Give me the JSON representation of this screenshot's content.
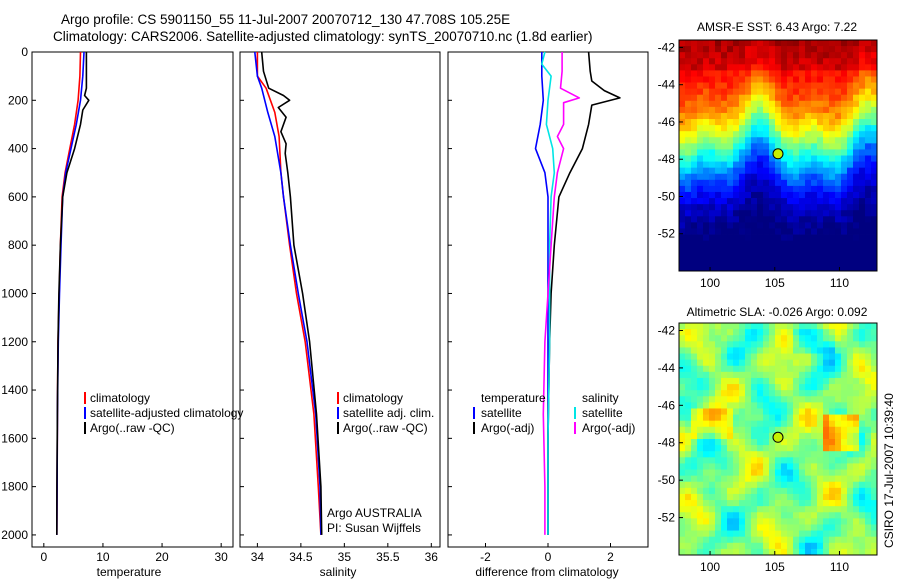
{
  "figure": {
    "title_line1": "Argo profile: CS 5901150_55 11-Jul-2007 20070712_130 47.708S 105.25E",
    "title_line2": "Climatology: CARS2006. Satellite-adjusted climatology: synTS_20070710.nc (1.8d earlier)",
    "credit": "CSIRO 17-Jul-2007 10:39:40",
    "argo_label": "Argo AUSTRALIA",
    "pi_label": "PI: Susan Wijffels"
  },
  "colors": {
    "climatology": "#ff0000",
    "satellite": "#0000ff",
    "argo": "#000000",
    "salinity_satellite": "#00e5e5",
    "salinity_argo": "#ff00ff",
    "marker": "#c8f000"
  },
  "chart_data": [
    {
      "type": "line",
      "xlabel": "temperature",
      "xticks": [
        "0",
        "10",
        "20",
        "30"
      ],
      "yticks": [
        "0",
        "200",
        "400",
        "600",
        "800",
        "1000",
        "1200",
        "1400",
        "1600",
        "1800",
        "2000"
      ],
      "xlim": [
        -2,
        32
      ],
      "ylim": [
        2050,
        0
      ],
      "legend": [
        "climatology",
        "satellite-adjusted climatology",
        "Argo(..raw -QC)"
      ],
      "series": [
        {
          "name": "climatology",
          "x": [
            6.2,
            6.1,
            5.8,
            5.2,
            4.4,
            3.6,
            3.1,
            2.8,
            2.6,
            2.4,
            2.3,
            2.25,
            2.2
          ],
          "y": [
            0,
            100,
            200,
            300,
            400,
            500,
            600,
            800,
            1000,
            1200,
            1500,
            1800,
            2000
          ]
        },
        {
          "name": "satellite-adjusted climatology",
          "x": [
            6.8,
            6.6,
            6.2,
            5.5,
            4.6,
            3.7,
            3.2,
            2.9,
            2.65,
            2.45,
            2.3,
            2.25,
            2.2
          ],
          "y": [
            0,
            100,
            200,
            300,
            400,
            500,
            600,
            800,
            1000,
            1200,
            1500,
            1800,
            2000
          ]
        },
        {
          "name": "Argo(..raw -QC)",
          "x": [
            7.2,
            7.2,
            7.2,
            6.9,
            7.6,
            6.6,
            6.2,
            5.2,
            3.9,
            3.2,
            2.8,
            2.55,
            2.4,
            2.3,
            2.22,
            2.2
          ],
          "y": [
            0,
            80,
            150,
            180,
            200,
            240,
            300,
            400,
            500,
            600,
            800,
            1000,
            1200,
            1500,
            1800,
            2000
          ]
        }
      ]
    },
    {
      "type": "line",
      "xlabel": "salinity",
      "xticks": [
        "34",
        "34.5",
        "35",
        "35.5",
        "36"
      ],
      "xlim": [
        33.8,
        36.1
      ],
      "ylim": [
        2050,
        0
      ],
      "legend": [
        "climatology",
        "satellite adj. clim.",
        "Argo(..raw -QC)"
      ],
      "series": [
        {
          "name": "climatology",
          "x": [
            34.0,
            34.0,
            34.1,
            34.2,
            34.25,
            34.27,
            34.3,
            34.37,
            34.45,
            34.55,
            34.65,
            34.7,
            34.73
          ],
          "y": [
            0,
            100,
            150,
            250,
            350,
            500,
            600,
            800,
            1000,
            1200,
            1500,
            1800,
            2000
          ]
        },
        {
          "name": "satellite adj. clim.",
          "x": [
            33.97,
            34.0,
            34.05,
            34.12,
            34.2,
            34.27,
            34.3,
            34.38,
            34.47,
            34.57,
            34.67,
            34.72,
            34.73
          ],
          "y": [
            0,
            100,
            150,
            250,
            350,
            500,
            600,
            800,
            1000,
            1200,
            1500,
            1800,
            2000
          ]
        },
        {
          "name": "Argo(..raw -QC)",
          "x": [
            34.05,
            34.07,
            34.13,
            34.3,
            34.37,
            34.24,
            34.33,
            34.27,
            34.33,
            34.32,
            34.35,
            34.38,
            34.42,
            34.52,
            34.6,
            34.68,
            34.73,
            34.74
          ],
          "y": [
            0,
            80,
            150,
            180,
            200,
            230,
            270,
            330,
            380,
            420,
            500,
            600,
            800,
            1000,
            1200,
            1500,
            1800,
            2000
          ]
        }
      ]
    },
    {
      "type": "line",
      "xlabel": "difference from climatology",
      "xticks": [
        "-2",
        "0",
        "2"
      ],
      "xlim": [
        -3.2,
        3.2
      ],
      "ylim": [
        2050,
        0
      ],
      "legend": [
        "temperature",
        "satellite",
        "Argo(-adj)",
        "salinity",
        "satellite",
        "Argo(-adj)"
      ],
      "series": [
        {
          "name": "temperature satellite",
          "x": [
            -0.2,
            -0.2,
            -0.15,
            -0.25,
            -0.4,
            -0.1,
            0,
            0,
            0,
            0,
            0
          ],
          "y": [
            0,
            100,
            200,
            300,
            400,
            500,
            600,
            800,
            1200,
            1600,
            2000
          ]
        },
        {
          "name": "temperature Argo(-adj)",
          "x": [
            1.3,
            1.35,
            1.4,
            1.8,
            2.3,
            1.4,
            1.3,
            1.1,
            0.7,
            0.35,
            0.2,
            0.1,
            0.05,
            0,
            0
          ],
          "y": [
            0,
            80,
            120,
            160,
            190,
            220,
            300,
            400,
            500,
            600,
            800,
            1000,
            1200,
            1600,
            2000
          ]
        },
        {
          "name": "salinity satellite",
          "x": [
            -0.1,
            -0.2,
            0.1,
            0,
            -0.05,
            0.15,
            0.2,
            0.1,
            0.05,
            0.05,
            0,
            0
          ],
          "y": [
            0,
            50,
            100,
            200,
            300,
            400,
            500,
            600,
            800,
            1200,
            1600,
            2000
          ]
        },
        {
          "name": "salinity Argo(-adj)",
          "x": [
            0.45,
            0.45,
            0.4,
            1.0,
            0.5,
            0.5,
            0.3,
            0.5,
            0.3,
            0.2,
            0.1,
            0,
            -0.1,
            -0.15,
            -0.1,
            -0.1
          ],
          "y": [
            0,
            80,
            150,
            190,
            210,
            300,
            350,
            400,
            500,
            600,
            800,
            1000,
            1200,
            1500,
            1800,
            2000
          ]
        }
      ]
    },
    {
      "type": "heatmap",
      "title": "AMSR-E SST: 6.43 Argo: 7.22",
      "xticks": [
        "100",
        "105",
        "110"
      ],
      "yticks": [
        "-42",
        "-44",
        "-46",
        "-48",
        "-50",
        "-52"
      ],
      "xlim": [
        97.6,
        112.9
      ],
      "ylim": [
        -54,
        -41.6
      ],
      "marker": {
        "lon": 105.25,
        "lat": -47.708
      }
    },
    {
      "type": "heatmap",
      "title": "Altimetric SLA: -0.026 Argo: 0.092",
      "xticks": [
        "100",
        "105",
        "110"
      ],
      "yticks": [
        "-42",
        "-44",
        "-46",
        "-48",
        "-50",
        "-52"
      ],
      "xlim": [
        97.6,
        112.9
      ],
      "ylim": [
        -54,
        -41.6
      ],
      "marker": {
        "lon": 105.25,
        "lat": -47.708
      }
    }
  ]
}
